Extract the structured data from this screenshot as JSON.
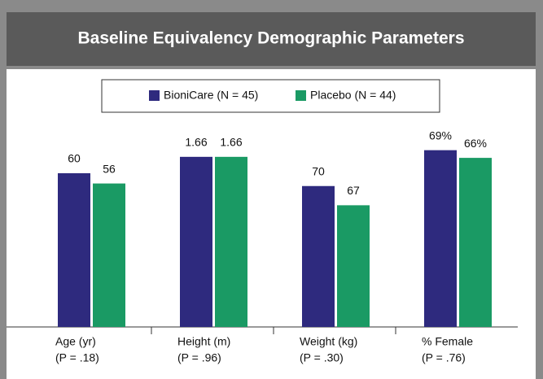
{
  "chart_data": {
    "type": "bar",
    "title": "Baseline Equivalency Demographic Parameters",
    "categories": [
      "Age (yr)",
      "Height (m)",
      "Weight (kg)",
      "% Female"
    ],
    "p_values": [
      "(P = .18)",
      "(P = .96)",
      "(P = .30)",
      "(P = .76)"
    ],
    "ylims": [
      [
        0,
        80
      ],
      [
        0,
        2
      ],
      [
        48,
        80
      ],
      [
        0,
        80
      ]
    ],
    "series": [
      {
        "name": "BioniCare (N = 45)",
        "color": "#2e2a7e",
        "values": [
          60,
          1.66,
          70,
          69
        ],
        "value_labels": [
          "60",
          "1.66",
          "70",
          "69%"
        ]
      },
      {
        "name": "Placebo (N = 44)",
        "color": "#1a9a64",
        "values": [
          56,
          1.66,
          67,
          66
        ],
        "value_labels": [
          "56",
          "1.66",
          "67",
          "66%"
        ]
      }
    ],
    "legend": "top"
  }
}
